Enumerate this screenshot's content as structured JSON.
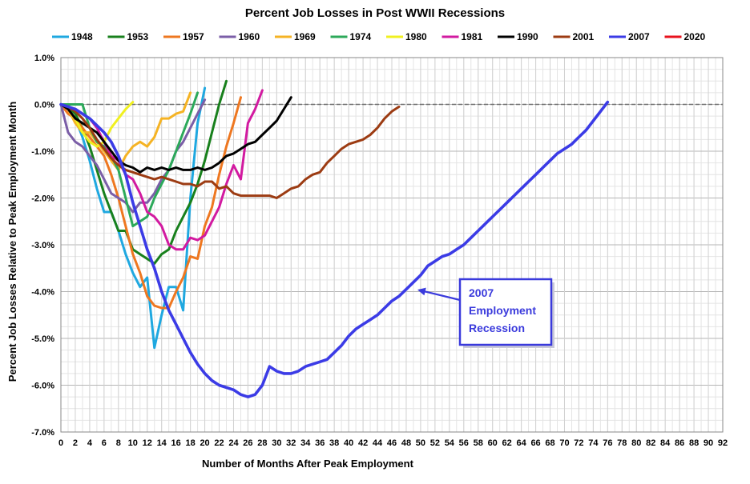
{
  "chart_data": {
    "type": "line",
    "title": "Percent Job Losses in Post WWII Recessions",
    "xlabel": "Number of Months After Peak Employment",
    "ylabel": "Percent Job Losses Relative to Peak Employment Month",
    "xlim": [
      0,
      92
    ],
    "ylim": [
      -7.0,
      1.0
    ],
    "x_ticks": [
      0,
      2,
      4,
      6,
      8,
      10,
      12,
      14,
      16,
      18,
      20,
      22,
      24,
      26,
      28,
      30,
      32,
      34,
      36,
      38,
      40,
      42,
      44,
      46,
      48,
      50,
      52,
      54,
      56,
      58,
      60,
      62,
      64,
      66,
      68,
      70,
      72,
      74,
      76,
      78,
      80,
      82,
      84,
      86,
      88,
      90,
      92
    ],
    "y_ticks": [
      {
        "value": 1.0,
        "label": "1.0%"
      },
      {
        "value": 0.0,
        "label": "0.0%"
      },
      {
        "value": -1.0,
        "label": "-1.0%"
      },
      {
        "value": -2.0,
        "label": "-2.0%"
      },
      {
        "value": -3.0,
        "label": "-3.0%"
      },
      {
        "value": -4.0,
        "label": "-4.0%"
      },
      {
        "value": -5.0,
        "label": "-5.0%"
      },
      {
        "value": -6.0,
        "label": "-6.0%"
      },
      {
        "value": -7.0,
        "label": "-7.0%"
      }
    ],
    "grid": true,
    "legend_position": "top",
    "series": [
      {
        "name": "1948",
        "color": "#1fa8e0",
        "values": [
          0,
          -0.1,
          -0.3,
          -0.7,
          -1.2,
          -1.8,
          -2.3,
          -2.3,
          -2.7,
          -3.2,
          -3.6,
          -3.9,
          -3.7,
          -5.2,
          -4.5,
          -3.9,
          -3.9,
          -4.4,
          -2.0,
          -0.4,
          0.35
        ]
      },
      {
        "name": "1953",
        "color": "#18801c",
        "values": [
          0,
          -0.05,
          -0.2,
          -0.5,
          -0.9,
          -1.4,
          -1.9,
          -2.3,
          -2.7,
          -2.7,
          -3.1,
          -3.2,
          -3.3,
          -3.4,
          -3.2,
          -3.1,
          -2.7,
          -2.4,
          -2.1,
          -1.7,
          -1.2,
          -0.6,
          0.0,
          0.5
        ]
      },
      {
        "name": "1957",
        "color": "#ee7720",
        "values": [
          0,
          -0.2,
          -0.3,
          -0.5,
          -0.7,
          -0.9,
          -1.1,
          -1.5,
          -2.0,
          -2.6,
          -3.2,
          -3.6,
          -4.1,
          -4.3,
          -4.35,
          -4.35,
          -4.0,
          -3.7,
          -3.25,
          -3.3,
          -2.6,
          -2.2,
          -1.5,
          -0.9,
          -0.4,
          0.15
        ]
      },
      {
        "name": "1960",
        "color": "#7b5ea7",
        "values": [
          0,
          -0.6,
          -0.8,
          -0.9,
          -1.1,
          -1.3,
          -1.6,
          -1.9,
          -2.0,
          -2.1,
          -2.3,
          -2.1,
          -2.1,
          -1.9,
          -1.6,
          -1.4,
          -1.0,
          -0.8,
          -0.5,
          -0.2,
          0.1
        ]
      },
      {
        "name": "1969",
        "color": "#f5b324",
        "values": [
          0,
          -0.1,
          -0.4,
          -0.6,
          -0.6,
          -0.8,
          -1.0,
          -1.2,
          -1.4,
          -1.1,
          -0.9,
          -0.8,
          -0.9,
          -0.7,
          -0.3,
          -0.3,
          -0.2,
          -0.15,
          0.25
        ]
      },
      {
        "name": "1974",
        "color": "#2ca95a",
        "values": [
          0,
          0,
          0,
          0,
          -0.5,
          -0.8,
          -0.9,
          -1.1,
          -1.4,
          -2.0,
          -2.6,
          -2.5,
          -2.4,
          -2.0,
          -1.7,
          -1.4,
          -1.0,
          -0.6,
          -0.2,
          0.25
        ]
      },
      {
        "name": "1980",
        "color": "#f0f020",
        "values": [
          0,
          -0.1,
          -0.3,
          -0.6,
          -0.8,
          -0.9,
          -0.8,
          -0.5,
          -0.3,
          -0.1,
          0.05
        ]
      },
      {
        "name": "1981",
        "color": "#d21aa0",
        "values": [
          0,
          -0.1,
          -0.1,
          -0.2,
          -0.3,
          -0.5,
          -0.8,
          -1.1,
          -1.2,
          -1.5,
          -1.6,
          -1.9,
          -2.3,
          -2.4,
          -2.6,
          -3.0,
          -3.1,
          -3.1,
          -2.85,
          -2.9,
          -2.8,
          -2.5,
          -2.2,
          -1.7,
          -1.3,
          -1.6,
          -0.4,
          -0.1,
          0.3
        ]
      },
      {
        "name": "1990",
        "color": "#000000",
        "values": [
          0,
          -0.1,
          -0.3,
          -0.4,
          -0.5,
          -0.6,
          -0.8,
          -1.0,
          -1.2,
          -1.3,
          -1.35,
          -1.45,
          -1.35,
          -1.4,
          -1.35,
          -1.4,
          -1.35,
          -1.4,
          -1.4,
          -1.35,
          -1.4,
          -1.35,
          -1.25,
          -1.1,
          -1.05,
          -0.95,
          -0.85,
          -0.8,
          -0.65,
          -0.5,
          -0.35,
          -0.1,
          0.15
        ]
      },
      {
        "name": "2001",
        "color": "#9c3b12",
        "values": [
          0,
          -0.05,
          -0.15,
          -0.3,
          -0.5,
          -0.75,
          -0.95,
          -1.15,
          -1.3,
          -1.4,
          -1.45,
          -1.5,
          -1.55,
          -1.6,
          -1.55,
          -1.6,
          -1.65,
          -1.7,
          -1.7,
          -1.75,
          -1.65,
          -1.65,
          -1.8,
          -1.75,
          -1.9,
          -1.95,
          -1.95,
          -1.95,
          -1.95,
          -1.95,
          -2.0,
          -1.9,
          -1.8,
          -1.75,
          -1.6,
          -1.5,
          -1.45,
          -1.25,
          -1.1,
          -0.95,
          -0.85,
          -0.8,
          -0.75,
          -0.65,
          -0.5,
          -0.3,
          -0.15,
          -0.05
        ]
      },
      {
        "name": "2007",
        "color": "#3b3be6",
        "values": [
          0,
          -0.05,
          -0.1,
          -0.2,
          -0.3,
          -0.45,
          -0.6,
          -0.8,
          -1.1,
          -1.5,
          -2.1,
          -2.6,
          -3.1,
          -3.5,
          -4.0,
          -4.4,
          -4.7,
          -5.0,
          -5.3,
          -5.55,
          -5.75,
          -5.9,
          -6.0,
          -6.05,
          -6.1,
          -6.2,
          -6.25,
          -6.2,
          -6.0,
          -5.6,
          -5.7,
          -5.75,
          -5.75,
          -5.7,
          -5.6,
          -5.55,
          -5.5,
          -5.45,
          -5.3,
          -5.15,
          -4.95,
          -4.8,
          -4.7,
          -4.6,
          -4.5,
          -4.35,
          -4.2,
          -4.1,
          -3.95,
          -3.8,
          -3.65,
          -3.45,
          -3.35,
          -3.25,
          -3.2,
          -3.1,
          -3.0,
          -2.85,
          -2.7,
          -2.55,
          -2.4,
          -2.25,
          -2.1,
          -1.95,
          -1.8,
          -1.65,
          -1.5,
          -1.35,
          -1.2,
          -1.05,
          -0.95,
          -0.85,
          -0.7,
          -0.55,
          -0.35,
          -0.15,
          0.05
        ]
      },
      {
        "name": "2020",
        "color": "#e8121d",
        "values": []
      }
    ],
    "annotations": [
      {
        "lines": [
          "2007",
          "Employment",
          "Recession"
        ],
        "color": "#3a3adc",
        "points_to": {
          "x": 49,
          "y": -3.95
        }
      }
    ]
  }
}
